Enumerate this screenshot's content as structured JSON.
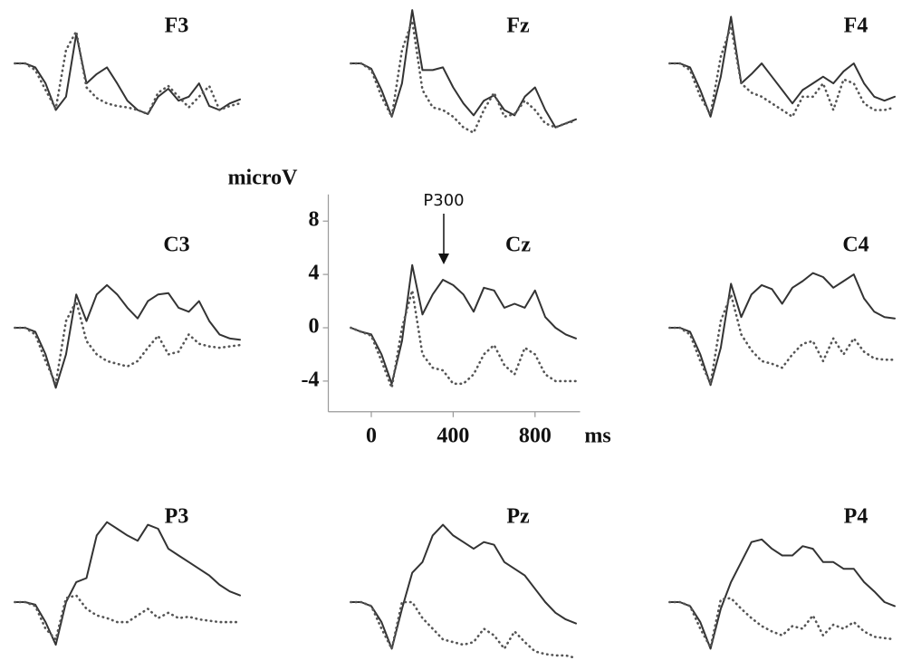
{
  "chart_data": [
    {
      "type": "line",
      "title": "F3",
      "x": [
        -100,
        -50,
        0,
        50,
        100,
        150,
        200,
        250,
        300,
        350,
        400,
        450,
        500,
        550,
        600,
        650,
        700,
        750,
        800,
        850,
        900,
        950,
        1000
      ],
      "series": [
        {
          "color": "#333333",
          "style": "solid",
          "values": [
            0,
            0,
            -0.3,
            -1.5,
            -3.5,
            -2.5,
            2.2,
            -1.5,
            -0.8,
            -0.3,
            -1.5,
            -2.8,
            -3.5,
            -3.8,
            -2.5,
            -1.9,
            -2.8,
            -2.5,
            -1.5,
            -3.2,
            -3.5,
            -3,
            -2.7
          ]
        },
        {
          "color": "#555555",
          "style": "dotted",
          "values": [
            0,
            0,
            -0.5,
            -2,
            -3.4,
            1,
            2.4,
            -1.8,
            -2.6,
            -3,
            -3.2,
            -3.3,
            -3.5,
            -3.8,
            -2.2,
            -1.7,
            -2.5,
            -3.3,
            -2.5,
            -1.7,
            -3.5,
            -3.2,
            -3
          ]
        }
      ]
    },
    {
      "type": "line",
      "title": "Fz",
      "x": [
        -100,
        -50,
        0,
        50,
        100,
        150,
        200,
        250,
        300,
        350,
        400,
        450,
        500,
        550,
        600,
        650,
        700,
        750,
        800,
        850,
        900,
        950,
        1000
      ],
      "series": [
        {
          "color": "#333333",
          "style": "solid",
          "values": [
            0,
            0,
            -0.4,
            -2,
            -4,
            -1.5,
            4,
            -0.5,
            -0.5,
            -0.3,
            -1.8,
            -3,
            -3.9,
            -2.8,
            -2.4,
            -3.5,
            -3.9,
            -2.5,
            -1.8,
            -3.5,
            -4.8,
            -4.5,
            -4.2
          ]
        },
        {
          "color": "#555555",
          "style": "dotted",
          "values": [
            0,
            0,
            -0.5,
            -2.5,
            -4,
            1,
            3.2,
            -2,
            -3.3,
            -3.5,
            -4,
            -4.8,
            -5.2,
            -3.5,
            -2.2,
            -4,
            -3.8,
            -2.8,
            -3.5,
            -4.5,
            -4.8,
            -4.5,
            -4.3
          ]
        }
      ]
    },
    {
      "type": "line",
      "title": "F4",
      "x": [
        -100,
        -50,
        0,
        50,
        100,
        150,
        200,
        250,
        300,
        350,
        400,
        450,
        500,
        550,
        600,
        650,
        700,
        750,
        800,
        850,
        900,
        950,
        1000
      ],
      "series": [
        {
          "color": "#333333",
          "style": "solid",
          "values": [
            0,
            0,
            -0.3,
            -2,
            -4,
            -1,
            3.5,
            -1.5,
            -0.8,
            0,
            -1,
            -2,
            -3,
            -2,
            -1.5,
            -1,
            -1.5,
            -0.6,
            0,
            -1.5,
            -2.5,
            -2.8,
            -2.5
          ]
        },
        {
          "color": "#555555",
          "style": "dotted",
          "values": [
            0,
            0,
            -0.5,
            -2.5,
            -3.8,
            0.5,
            2.8,
            -1.5,
            -2.2,
            -2.5,
            -3,
            -3.5,
            -4,
            -2.5,
            -2.5,
            -1.5,
            -3.5,
            -1.2,
            -1.5,
            -3,
            -3.5,
            -3.5,
            -3.3
          ]
        }
      ]
    },
    {
      "type": "line",
      "title": "C3",
      "x": [
        -100,
        -50,
        0,
        50,
        100,
        150,
        200,
        250,
        300,
        350,
        400,
        450,
        500,
        550,
        600,
        650,
        700,
        750,
        800,
        850,
        900,
        950,
        1000
      ],
      "series": [
        {
          "color": "#333333",
          "style": "solid",
          "values": [
            0,
            0,
            -0.3,
            -2,
            -4.5,
            -2,
            2.5,
            0.5,
            2.5,
            3.2,
            2.5,
            1.5,
            0.7,
            2,
            2.5,
            2.6,
            1.5,
            1.2,
            2,
            0.5,
            -0.5,
            -0.8,
            -0.9
          ]
        },
        {
          "color": "#555555",
          "style": "dotted",
          "values": [
            0,
            0,
            -0.5,
            -2.5,
            -4.2,
            0.5,
            2,
            -1,
            -2,
            -2.5,
            -2.7,
            -2.9,
            -2.5,
            -1.5,
            -0.6,
            -2,
            -1.8,
            -0.5,
            -1.2,
            -1.4,
            -1.5,
            -1.4,
            -1.3
          ]
        }
      ]
    },
    {
      "type": "line",
      "title": "Cz",
      "ylabel": "microV",
      "xlabel": "ms",
      "annotation": "P300",
      "xlim": [
        -210,
        1020
      ],
      "ylim": [
        -6.3,
        10
      ],
      "xticks": [
        0,
        400,
        800
      ],
      "yticks": [
        -4,
        0,
        4,
        8
      ],
      "x": [
        -100,
        -50,
        0,
        50,
        100,
        150,
        200,
        250,
        300,
        350,
        400,
        450,
        500,
        550,
        600,
        650,
        700,
        750,
        800,
        850,
        900,
        950,
        1000
      ],
      "series": [
        {
          "color": "#333333",
          "style": "solid",
          "values": [
            0,
            -0.3,
            -0.5,
            -2,
            -4.2,
            -1,
            4.7,
            1,
            2.5,
            3.6,
            3.2,
            2.5,
            1.2,
            3,
            2.8,
            1.5,
            1.8,
            1.5,
            2.8,
            0.8,
            0,
            -0.5,
            -0.8
          ]
        },
        {
          "color": "#555555",
          "style": "dotted",
          "values": [
            0,
            -0.3,
            -0.6,
            -2.5,
            -4.5,
            0,
            2.8,
            -2,
            -3,
            -3.2,
            -4.2,
            -4.2,
            -3.5,
            -2,
            -1.3,
            -2.8,
            -3.5,
            -1.5,
            -2,
            -3.5,
            -4,
            -4,
            -4
          ]
        }
      ]
    },
    {
      "type": "line",
      "title": "C4",
      "x": [
        -100,
        -50,
        0,
        50,
        100,
        150,
        200,
        250,
        300,
        350,
        400,
        450,
        500,
        550,
        600,
        650,
        700,
        750,
        800,
        850,
        900,
        950,
        1000
      ],
      "series": [
        {
          "color": "#333333",
          "style": "solid",
          "values": [
            0,
            0,
            -0.3,
            -2,
            -4.3,
            -1.5,
            3.3,
            0.8,
            2.5,
            3.2,
            2.9,
            1.8,
            3,
            3.5,
            4.1,
            3.8,
            3,
            3.5,
            4,
            2.2,
            1.2,
            0.8,
            0.7
          ]
        },
        {
          "color": "#555555",
          "style": "dotted",
          "values": [
            0,
            0,
            -0.5,
            -2.5,
            -4.2,
            0.5,
            2.5,
            -0.5,
            -1.7,
            -2.5,
            -2.7,
            -3,
            -2,
            -1.2,
            -1,
            -2.5,
            -0.8,
            -2,
            -0.8,
            -1.8,
            -2.3,
            -2.4,
            -2.4
          ]
        }
      ]
    },
    {
      "type": "line",
      "title": "P3",
      "x": [
        -100,
        -50,
        0,
        50,
        100,
        150,
        200,
        250,
        300,
        350,
        400,
        450,
        500,
        550,
        600,
        650,
        700,
        750,
        800,
        850,
        900,
        950,
        1000
      ],
      "series": [
        {
          "color": "#333333",
          "style": "solid",
          "values": [
            0,
            0,
            -0.2,
            -1.5,
            -3.2,
            0,
            1.5,
            1.8,
            5,
            6,
            5.5,
            5,
            4.6,
            5.8,
            5.5,
            4,
            3.5,
            3,
            2.5,
            2,
            1.3,
            0.8,
            0.5
          ]
        },
        {
          "color": "#555555",
          "style": "dotted",
          "values": [
            0,
            0,
            -0.3,
            -2,
            -2.8,
            0.3,
            0.5,
            -0.5,
            -1,
            -1.2,
            -1.5,
            -1.5,
            -1,
            -0.5,
            -1.2,
            -0.8,
            -1.2,
            -1.1,
            -1.3,
            -1.4,
            -1.5,
            -1.5,
            -1.5
          ]
        }
      ]
    },
    {
      "type": "line",
      "title": "Pz",
      "x": [
        -100,
        -50,
        0,
        50,
        100,
        150,
        200,
        250,
        300,
        350,
        400,
        450,
        500,
        550,
        600,
        650,
        700,
        750,
        800,
        850,
        900,
        950,
        1000
      ],
      "series": [
        {
          "color": "#333333",
          "style": "solid",
          "values": [
            0,
            0,
            -0.3,
            -1.5,
            -3.5,
            -0.5,
            2.2,
            3,
            5,
            5.8,
            5,
            4.5,
            4,
            4.5,
            4.3,
            3,
            2.5,
            2,
            1,
            0,
            -0.8,
            -1.3,
            -1.6
          ]
        },
        {
          "color": "#555555",
          "style": "dotted",
          "values": [
            0,
            0,
            -0.3,
            -2,
            -3.5,
            0,
            0,
            -1.2,
            -2,
            -2.8,
            -3,
            -3.2,
            -3,
            -2,
            -2.5,
            -3.5,
            -2.2,
            -3,
            -3.7,
            -3.9,
            -4,
            -4,
            -4.2
          ]
        }
      ]
    },
    {
      "type": "line",
      "title": "P4",
      "x": [
        -100,
        -50,
        0,
        50,
        100,
        150,
        200,
        250,
        300,
        350,
        400,
        450,
        500,
        550,
        600,
        650,
        700,
        750,
        800,
        850,
        900,
        950,
        1000
      ],
      "series": [
        {
          "color": "#333333",
          "style": "solid",
          "values": [
            0,
            0,
            -0.3,
            -1.5,
            -3.5,
            -0.5,
            1.5,
            3,
            4.5,
            4.7,
            4,
            3.5,
            3.5,
            4.2,
            4,
            3,
            3,
            2.5,
            2.5,
            1.5,
            0.8,
            0,
            -0.3
          ]
        },
        {
          "color": "#555555",
          "style": "dotted",
          "values": [
            0,
            0,
            -0.3,
            -2,
            -3.4,
            0.2,
            0.3,
            -0.5,
            -1.2,
            -1.8,
            -2.2,
            -2.5,
            -1.8,
            -2,
            -1,
            -2.5,
            -1.7,
            -2,
            -1.5,
            -2.2,
            -2.6,
            -2.7,
            -2.8
          ]
        }
      ]
    }
  ]
}
